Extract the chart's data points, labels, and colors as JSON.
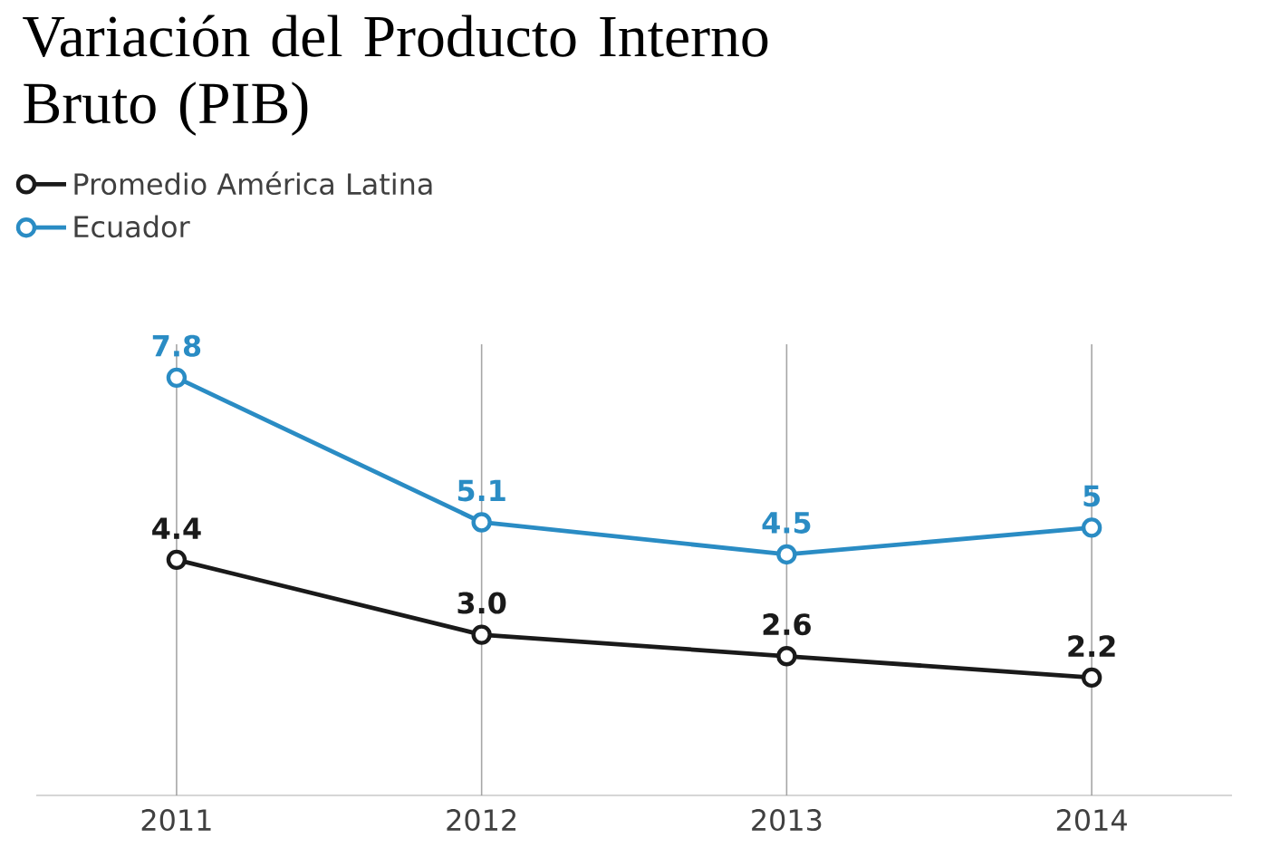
{
  "chart_data": {
    "type": "line",
    "title": "Variación del Producto Interno Bruto (PIB)",
    "categories": [
      "2011",
      "2012",
      "2013",
      "2014"
    ],
    "series": [
      {
        "name": "Promedio América Latina",
        "color": "#1a1a1a",
        "values": [
          4.4,
          3.0,
          2.6,
          2.2
        ],
        "value_labels": [
          "4.4",
          "3.0",
          "2.6",
          "2.2"
        ]
      },
      {
        "name": "Ecuador",
        "color": "#2a8cc4",
        "values": [
          7.8,
          5.1,
          4.5,
          5
        ],
        "value_labels": [
          "7.8",
          "5.1",
          "4.5",
          "5"
        ]
      }
    ],
    "grid": "x",
    "legend": "top left",
    "marker": "circle",
    "line_style": "solid"
  }
}
